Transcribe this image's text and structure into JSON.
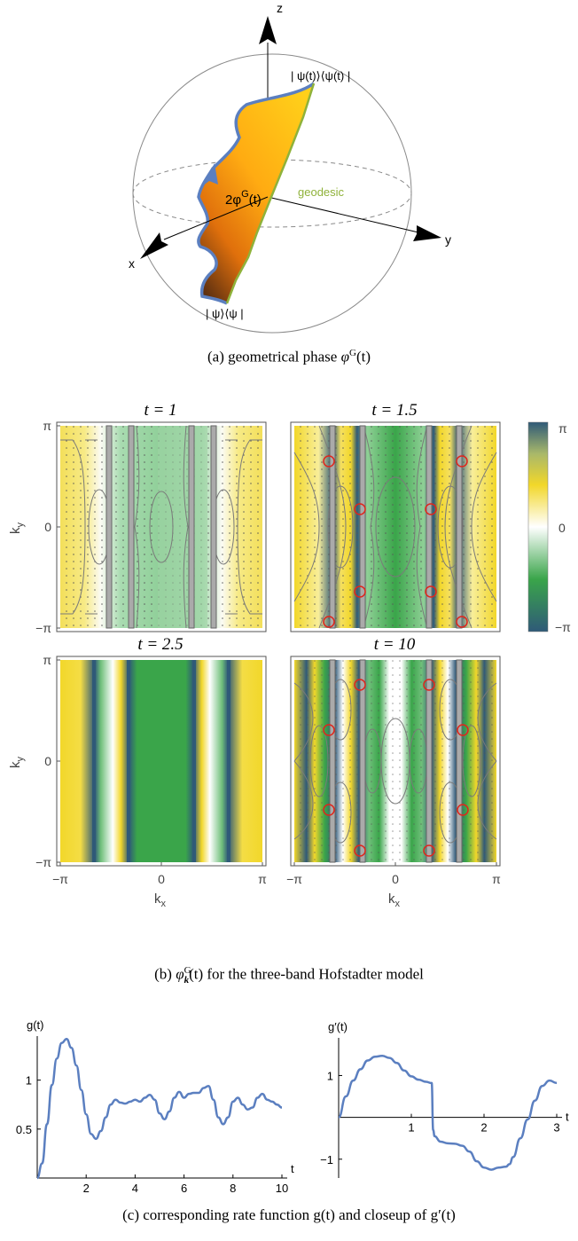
{
  "panel_a": {
    "axis_z": "z",
    "axis_x": "x",
    "axis_y": "y",
    "label_top": "| ψ(t)⟩⟨ψ(t) |",
    "label_bottom": "| ψ⟩⟨ψ |",
    "label_phase": "2φ",
    "label_phase_sup": "G",
    "label_phase_arg": "(t)",
    "label_geodesic": "geodesic",
    "caption_prefix": "(a) geometrical phase ",
    "caption_math": "φ",
    "caption_sup": "G",
    "caption_suffix": "(t)",
    "colors": {
      "surface_top": "#ffd01a",
      "surface_bottom": "#6b3410",
      "boundary": "#5b7fc0",
      "geodesic": "#8fb23a"
    }
  },
  "panel_b": {
    "titles": [
      "t = 1",
      "t = 1.5",
      "t = 2.5",
      "t = 10"
    ],
    "ky_label": "k",
    "ky_sub": "y",
    "kx_label": "k",
    "kx_sub": "x",
    "ticks": [
      "π",
      "0",
      "−π"
    ],
    "xticks": [
      "−π",
      "0",
      "π"
    ],
    "colorbar_ticks": [
      "π",
      "0",
      "−π"
    ],
    "caption_prefix": "(b) ",
    "caption_math": "φ",
    "caption_sup": "G",
    "caption_sub": "k",
    "caption_suffix": "(t) for the three-band Hofstadter model",
    "colors": {
      "pos": "#f2dc30",
      "zero": "#ffffff",
      "mid": "#3aa54a",
      "neg": "#2f5a78",
      "marker": "#e0251b",
      "contour": "#7a7a7a"
    }
  },
  "panel_c": {
    "caption": "(c) corresponding rate function g(t) and closeup of g′(t)",
    "chart_data": [
      {
        "type": "line",
        "ylabel": "g(t)",
        "xlabel": "t",
        "xticks": [
          "2",
          "4",
          "6",
          "8",
          "10"
        ],
        "yticks": [
          "0.5",
          "1"
        ],
        "xlim": [
          0,
          10
        ],
        "ylim": [
          0,
          1.45
        ],
        "series": [
          {
            "x": [
              0,
              0.2,
              0.4,
              0.6,
              0.8,
              1.0,
              1.2,
              1.4,
              1.6,
              1.8,
              2.0,
              2.2,
              2.4,
              2.6,
              2.8,
              3.0,
              3.2,
              3.4,
              3.6,
              3.8,
              4.0,
              4.2,
              4.4,
              4.6,
              4.8,
              5.0,
              5.2,
              5.4,
              5.6,
              5.8,
              6.0,
              6.2,
              6.4,
              6.6,
              6.8,
              7.0,
              7.2,
              7.4,
              7.6,
              7.8,
              8.0,
              8.2,
              8.4,
              8.6,
              8.8,
              9.0,
              9.2,
              9.4,
              9.6,
              9.8,
              10.0
            ],
            "values": [
              0,
              0.15,
              0.55,
              0.95,
              1.22,
              1.38,
              1.42,
              1.33,
              1.15,
              0.9,
              0.65,
              0.45,
              0.4,
              0.48,
              0.62,
              0.75,
              0.8,
              0.77,
              0.76,
              0.78,
              0.8,
              0.78,
              0.82,
              0.85,
              0.8,
              0.66,
              0.6,
              0.68,
              0.82,
              0.88,
              0.82,
              0.86,
              0.87,
              0.87,
              0.92,
              0.94,
              0.8,
              0.62,
              0.55,
              0.62,
              0.78,
              0.82,
              0.75,
              0.7,
              0.72,
              0.82,
              0.86,
              0.8,
              0.78,
              0.75,
              0.72
            ]
          }
        ]
      },
      {
        "type": "line",
        "ylabel": "g′(t)",
        "xlabel": "t",
        "xticks": [
          "1",
          "2",
          "3"
        ],
        "yticks": [
          "1",
          "−1"
        ],
        "xlim": [
          0,
          3
        ],
        "ylim": [
          -1.45,
          1.9
        ],
        "series": [
          {
            "x": [
              0,
              0.1,
              0.2,
              0.3,
              0.4,
              0.5,
              0.6,
              0.7,
              0.8,
              0.9,
              1.0,
              1.1,
              1.2,
              1.28,
              1.3,
              1.32,
              1.4,
              1.5,
              1.6,
              1.7,
              1.8,
              1.9,
              2.0,
              2.1,
              2.2,
              2.3,
              2.35,
              2.4,
              2.5,
              2.6,
              2.7,
              2.8,
              2.9,
              3.0
            ],
            "values": [
              0,
              0.5,
              0.88,
              1.15,
              1.36,
              1.45,
              1.47,
              1.42,
              1.3,
              1.12,
              0.98,
              0.9,
              0.85,
              0.82,
              -0.3,
              -0.45,
              -0.58,
              -0.62,
              -0.63,
              -0.68,
              -0.82,
              -1.05,
              -1.2,
              -1.25,
              -1.2,
              -1.18,
              -1.12,
              -0.95,
              -0.5,
              -0.05,
              0.4,
              0.75,
              0.88,
              0.82
            ]
          }
        ]
      }
    ]
  }
}
